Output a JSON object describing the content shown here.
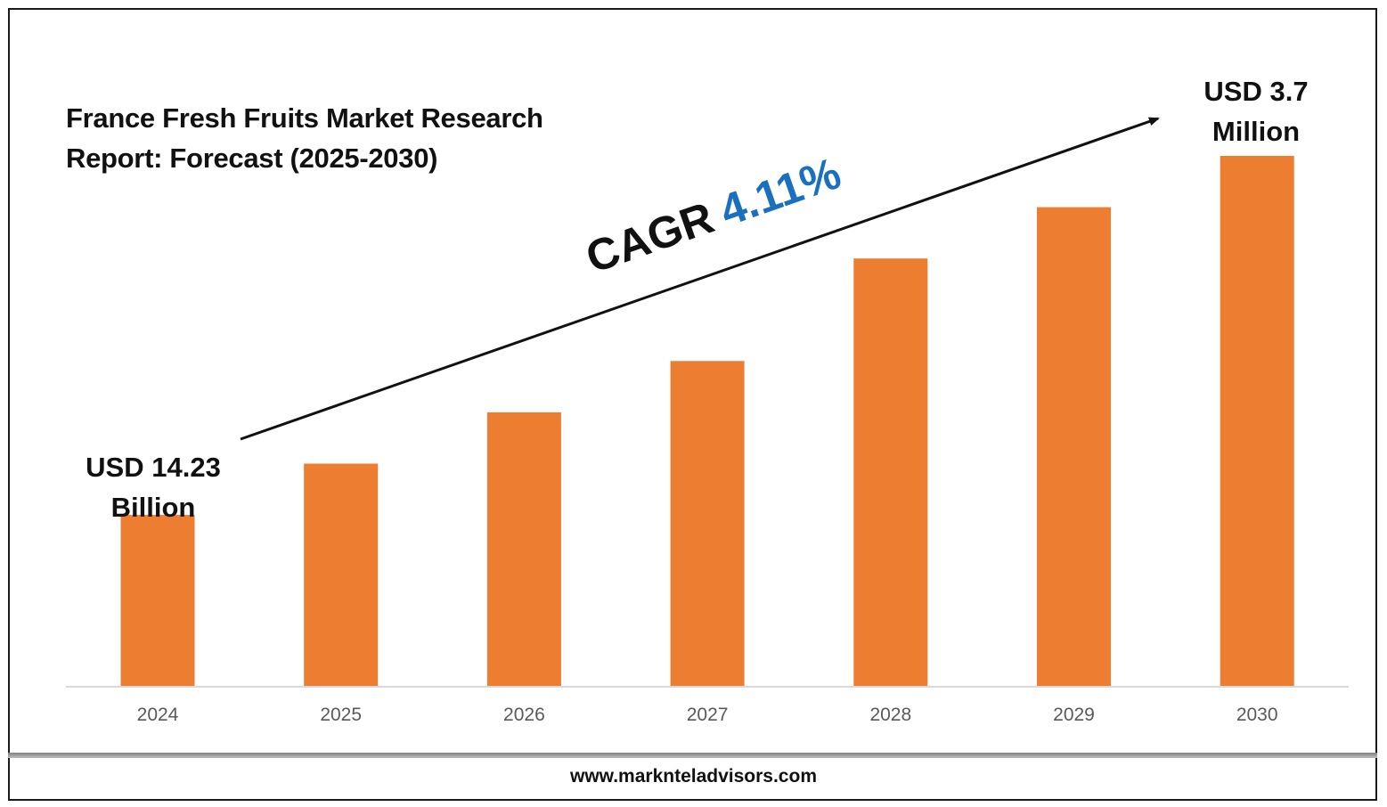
{
  "title_lines": [
    "France Fresh Fruits Market Research",
    "Report: Forecast (2025-2030)"
  ],
  "start_label": {
    "line1": "USD 14.23",
    "line2": "Billion"
  },
  "end_label": {
    "line1": "USD 3.7",
    "line2": "Million"
  },
  "cagr": {
    "label": "CAGR",
    "value": "4.11%"
  },
  "footer": "www.marknteladvisors.com",
  "colors": {
    "bar": "#ED7D31",
    "cagr_value": "#1A6FBF",
    "text": "#111111",
    "axis": "#D9D9D9",
    "tick_text": "#595959"
  },
  "chart_data": {
    "type": "bar",
    "categories": [
      "2024",
      "2025",
      "2026",
      "2027",
      "2028",
      "2029",
      "2030"
    ],
    "values": [
      1.0,
      1.3,
      1.6,
      1.9,
      2.5,
      2.8,
      3.1
    ],
    "ylim": [
      0,
      3.1
    ],
    "xlabel": "",
    "ylabel": "",
    "grid": false,
    "legend": "none",
    "annotations": [
      "USD 14.23 Billion",
      "USD 3.7 Million",
      "CAGR 4.11%"
    ]
  }
}
